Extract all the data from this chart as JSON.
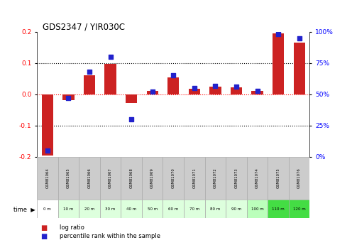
{
  "title": "GDS2347 / YIR030C",
  "samples": [
    "GSM81064",
    "GSM81065",
    "GSM81066",
    "GSM81067",
    "GSM81068",
    "GSM81069",
    "GSM81070",
    "GSM81071",
    "GSM81072",
    "GSM81073",
    "GSM81074",
    "GSM81075",
    "GSM81076"
  ],
  "time_labels": [
    "0 m",
    "10 m",
    "20 m",
    "30 m",
    "40 m",
    "50 m",
    "60 m",
    "70 m",
    "80 m",
    "90 m",
    "100 m",
    "110 m",
    "120 m"
  ],
  "log_ratio": [
    -0.195,
    -0.018,
    0.06,
    0.098,
    -0.028,
    0.012,
    0.055,
    0.018,
    0.025,
    0.022,
    0.012,
    0.195,
    0.165
  ],
  "percentile_rank": [
    5,
    47,
    68,
    80,
    30,
    52,
    65,
    55,
    57,
    56,
    53,
    98,
    95
  ],
  "bar_color": "#cc2222",
  "dot_color": "#2222cc",
  "bg_color": "#ffffff",
  "ylim_left": [
    -0.2,
    0.2
  ],
  "ylim_right": [
    0,
    100
  ],
  "yticks_left": [
    -0.2,
    -0.1,
    0.0,
    0.1,
    0.2
  ],
  "yticks_right": [
    0,
    25,
    50,
    75,
    100
  ],
  "ytick_labels_right": [
    "0%",
    "25%",
    "50%",
    "75%",
    "100%"
  ],
  "time_row_colors": [
    "#ffffff",
    "#ddffdd",
    "#ddffdd",
    "#ddffdd",
    "#ddffdd",
    "#ddffdd",
    "#ddffdd",
    "#ddffdd",
    "#ddffdd",
    "#ddffdd",
    "#bbffbb",
    "#44dd44",
    "#44dd44"
  ],
  "gsm_row_color": "#cccccc",
  "gsm_row_alt_color": "#bbbbbb"
}
